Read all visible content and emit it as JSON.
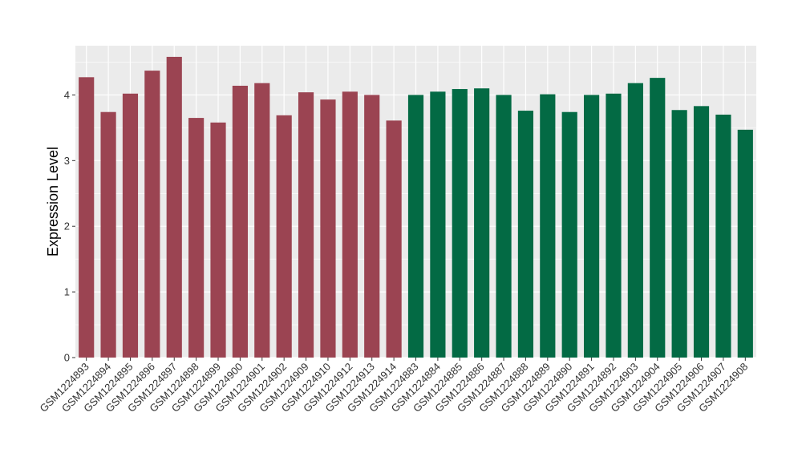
{
  "chart_data": {
    "type": "bar",
    "title": "",
    "xlabel": "",
    "ylabel": "Expression Level",
    "ylim": [
      0,
      4.75
    ],
    "yticks": [
      0,
      1,
      2,
      3,
      4
    ],
    "grid": true,
    "panel_background": "#ebebeb",
    "grid_color": "#ffffff",
    "categories": [
      "GSM1224893",
      "GSM1224894",
      "GSM1224895",
      "GSM1224896",
      "GSM1224897",
      "GSM1224898",
      "GSM1224899",
      "GSM1224900",
      "GSM1224901",
      "GSM1224902",
      "GSM1224909",
      "GSM1224910",
      "GSM1224912",
      "GSM1224913",
      "GSM1224914",
      "GSM1224883",
      "GSM1224884",
      "GSM1224885",
      "GSM1224886",
      "GSM1224887",
      "GSM1224888",
      "GSM1224889",
      "GSM1224890",
      "GSM1224891",
      "GSM1224892",
      "GSM1224903",
      "GSM1224904",
      "GSM1224905",
      "GSM1224906",
      "GSM1224907",
      "GSM1224908"
    ],
    "values": [
      4.27,
      3.74,
      4.02,
      4.37,
      4.58,
      3.65,
      3.58,
      4.14,
      4.18,
      3.69,
      4.04,
      3.93,
      4.05,
      4.0,
      3.61,
      4.0,
      4.05,
      4.09,
      4.1,
      4.0,
      3.76,
      4.01,
      3.74,
      4.0,
      4.02,
      4.18,
      4.26,
      3.77,
      3.83,
      3.7,
      3.47
    ],
    "colors": [
      "#9b4452",
      "#9b4452",
      "#9b4452",
      "#9b4452",
      "#9b4452",
      "#9b4452",
      "#9b4452",
      "#9b4452",
      "#9b4452",
      "#9b4452",
      "#9b4452",
      "#9b4452",
      "#9b4452",
      "#9b4452",
      "#9b4452",
      "#036a44",
      "#036a44",
      "#036a44",
      "#036a44",
      "#036a44",
      "#036a44",
      "#036a44",
      "#036a44",
      "#036a44",
      "#036a44",
      "#036a44",
      "#036a44",
      "#036a44",
      "#036a44",
      "#036a44",
      "#036a44"
    ]
  }
}
